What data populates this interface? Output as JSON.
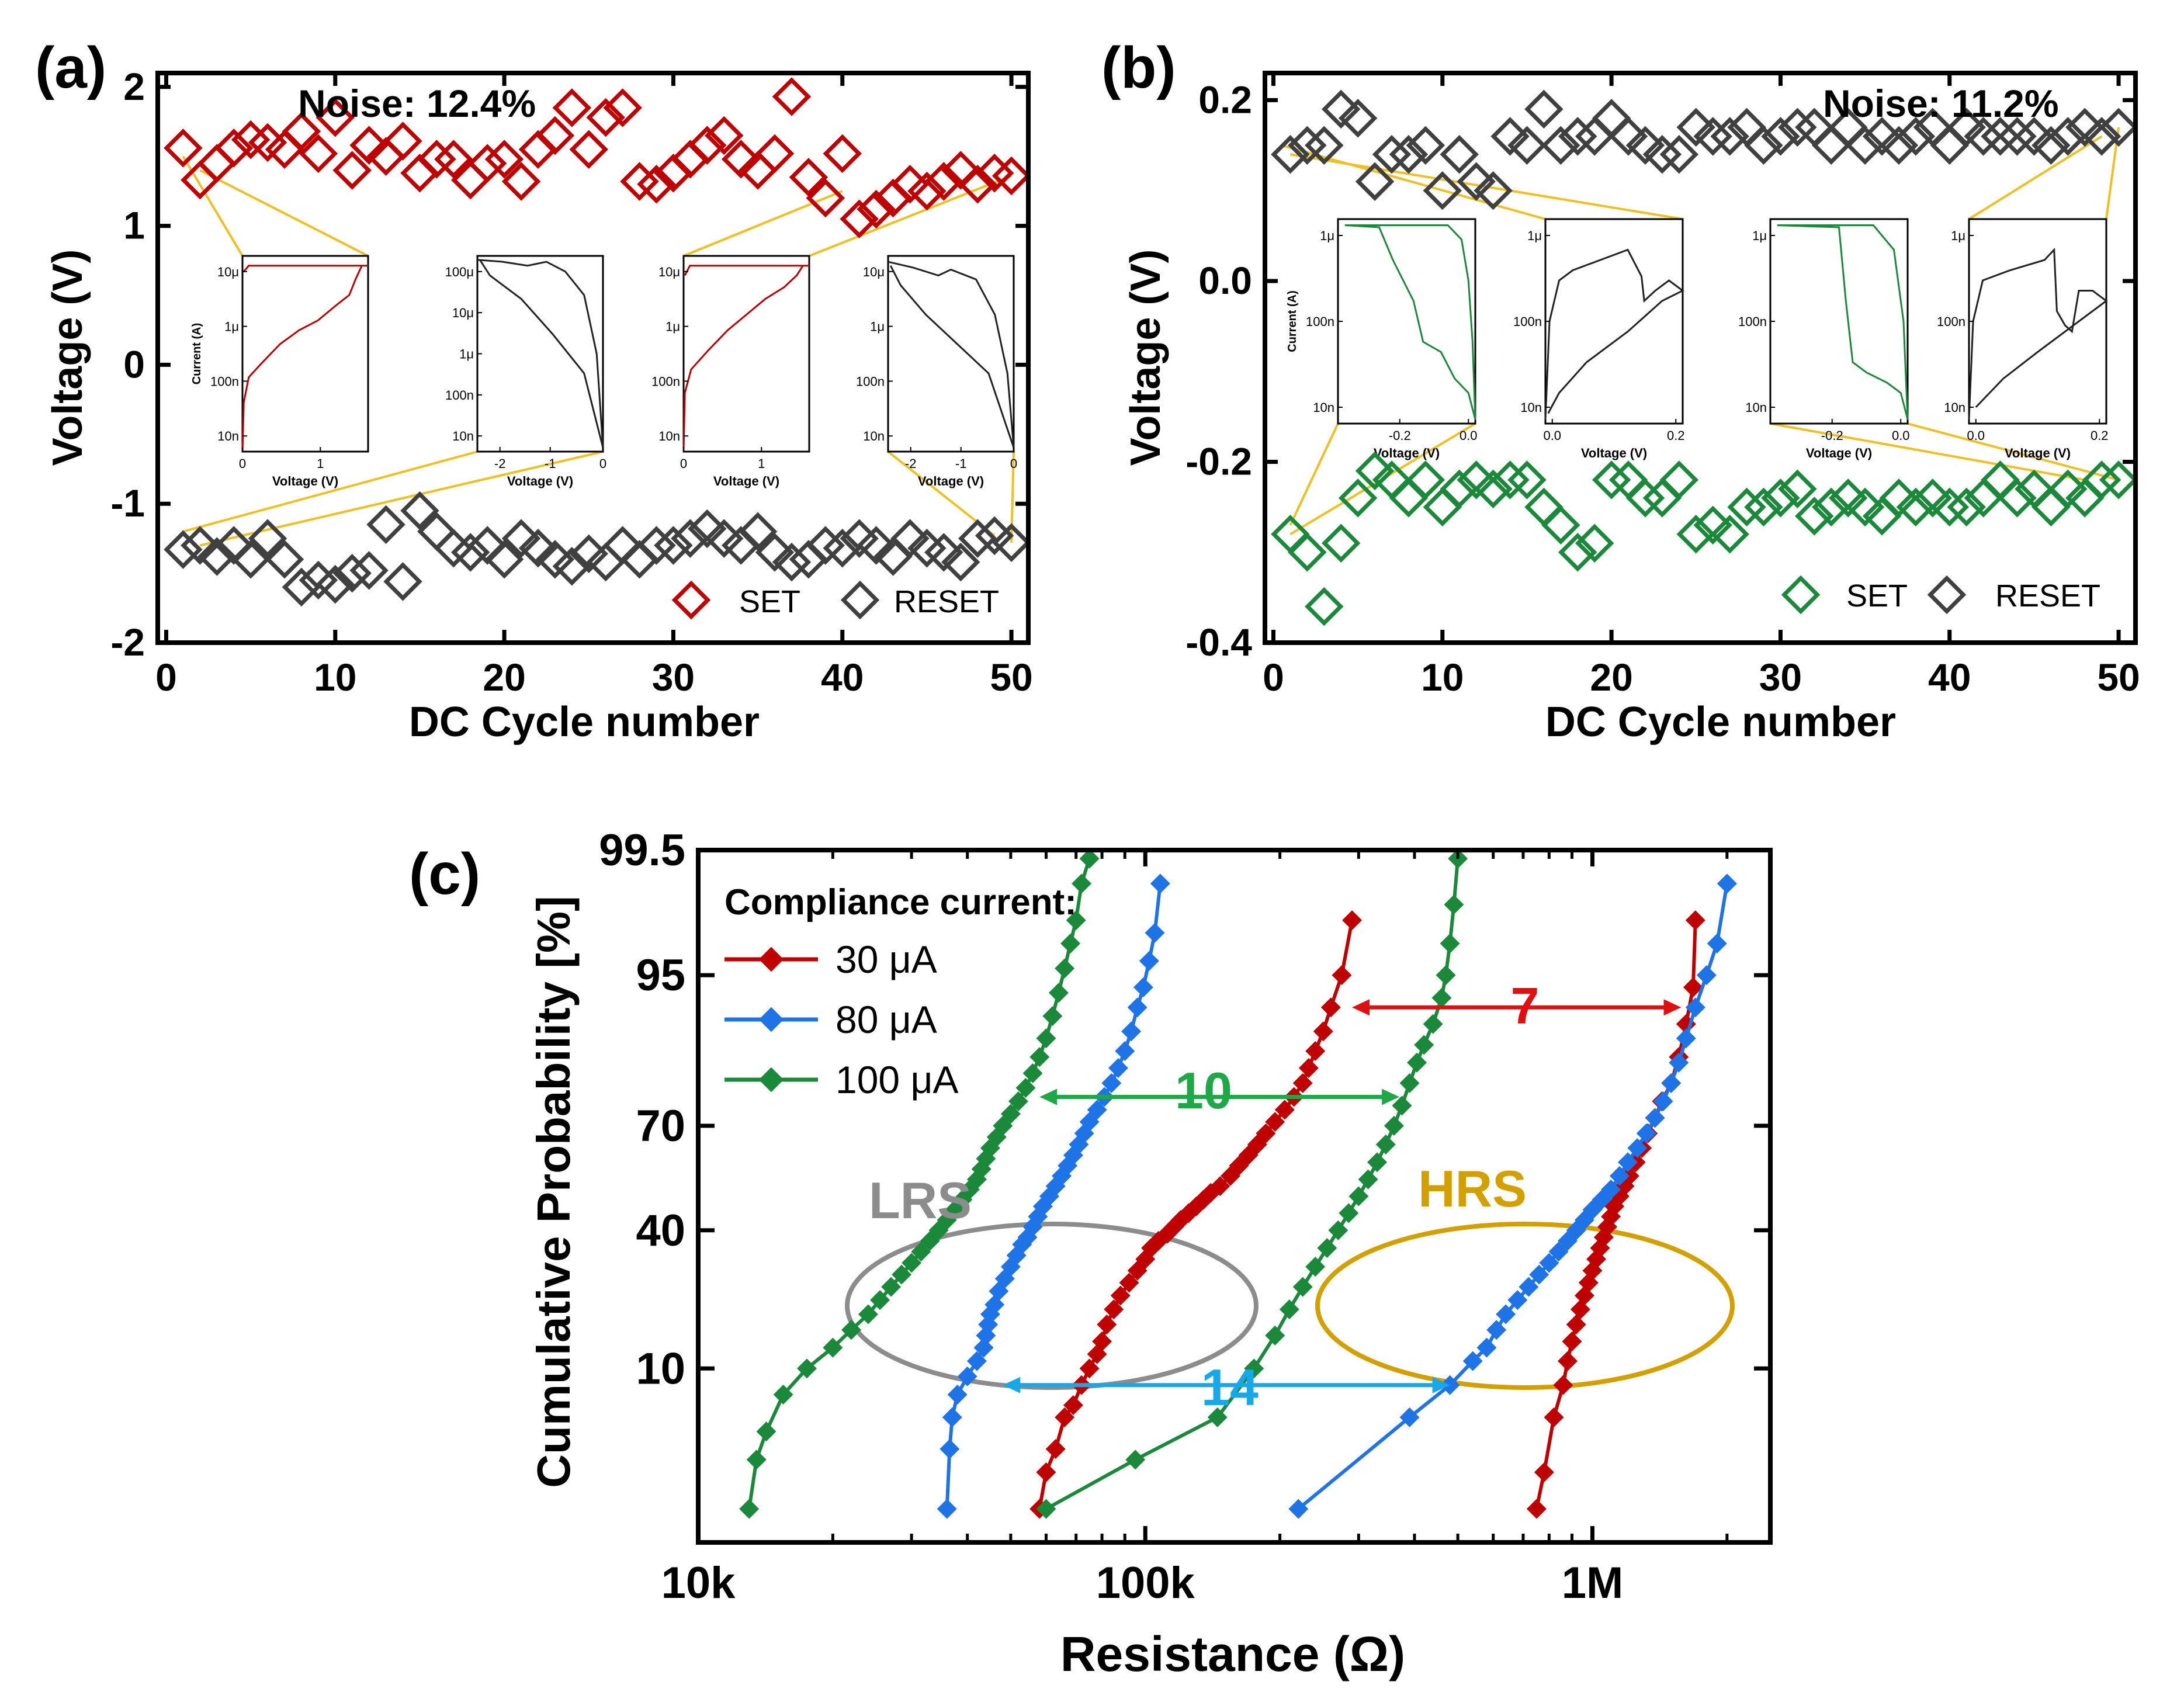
{
  "colors": {
    "set_a": "#C00000",
    "reset": "#404040",
    "set_b": "#1A8A3A",
    "ca30": "#C00000",
    "ca80": "#1E73E6",
    "ca100": "#1A8A3A",
    "lrs": "#8C8C8C",
    "hrs": "#D4A000",
    "leader": "#F0C020",
    "ann7": "#E01010",
    "ann10": "#20A848",
    "ann14": "#18A8E8"
  },
  "panel_a": {
    "label": "(a)",
    "noise": "Noise: 12.4%",
    "xlabel": "DC Cycle number",
    "ylabel": "Voltage (V)",
    "xticks": [
      "0",
      "10",
      "20",
      "30",
      "40",
      "50"
    ],
    "yticks": [
      "-2",
      "-1",
      "0",
      "1",
      "2"
    ],
    "legend": [
      "SET",
      "RESET"
    ],
    "inset_xlabel": "Voltage (V)",
    "inset_ylabel": "Current (A)",
    "inset1_yticks": [
      "10μ",
      "1μ",
      "100n",
      "10n"
    ],
    "inset1_xticks": [
      "0",
      "1"
    ],
    "inset2_yticks": [
      "100μ",
      "10μ",
      "1μ",
      "100n",
      "10n"
    ],
    "inset2_xticks": [
      "-2",
      "-1",
      "0"
    ],
    "inset3_yticks": [
      "10μ",
      "1μ",
      "100n",
      "10n"
    ],
    "inset3_xticks": [
      "0",
      "1"
    ],
    "inset4_yticks": [
      "10μ",
      "1μ",
      "100n",
      "10n"
    ],
    "inset4_xticks": [
      "-2",
      "-1",
      "0"
    ]
  },
  "panel_b": {
    "label": "(b)",
    "noise": "Noise: 11.2%",
    "xlabel": "DC Cycle number",
    "ylabel": "Voltage (V)",
    "xticks": [
      "0",
      "10",
      "20",
      "30",
      "40",
      "50"
    ],
    "yticks": [
      "-0.4",
      "-0.2",
      "0.0",
      "0.2"
    ],
    "legend": [
      "SET",
      "RESET"
    ],
    "inset_xlabel": "Voltage (V)",
    "inset_ylabel": "Current (A)",
    "inset1_yticks": [
      "1μ",
      "100n",
      "10n"
    ],
    "inset1_xticks": [
      "-0.2",
      "0.0"
    ],
    "inset2_yticks": [
      "1μ",
      "100n",
      "10n"
    ],
    "inset2_xticks": [
      "0.0",
      "0.2"
    ],
    "inset3_yticks": [
      "1μ",
      "100n",
      "10n"
    ],
    "inset3_xticks": [
      "-0.2",
      "0.0"
    ],
    "inset4_yticks": [
      "1μ",
      "100n",
      "10n"
    ],
    "inset4_xticks": [
      "0.0",
      "0.2"
    ]
  },
  "panel_c": {
    "label": "(c)",
    "xlabel": "Resistance (Ω)",
    "ylabel": "Cumulative Probability [%]",
    "xticks": [
      "10k",
      "100k",
      "1M"
    ],
    "yticks": [
      "99.5",
      "95",
      "70",
      "40",
      "10"
    ],
    "legend_title": "Compliance current:",
    "legend": [
      "30 μA",
      "80 μA",
      "100 μA"
    ],
    "lrs": "LRS",
    "hrs": "HRS",
    "ann7": "7",
    "ann10": "10",
    "ann14": "14"
  },
  "chart_data": [
    {
      "type": "scatter",
      "title": "(a)",
      "annotation": "Noise: 12.4%",
      "xlabel": "DC Cycle number",
      "ylabel": "Voltage (V)",
      "xlim": [
        -0.5,
        51
      ],
      "ylim": [
        -2,
        2.1
      ],
      "series": [
        {
          "name": "SET",
          "x": [
            1,
            2,
            3,
            4,
            5,
            6,
            7,
            8,
            9,
            10,
            11,
            12,
            13,
            14,
            15,
            16,
            17,
            18,
            19,
            20,
            21,
            22,
            23,
            24,
            25,
            26,
            27,
            28,
            29,
            30,
            31,
            32,
            33,
            34,
            35,
            36,
            37,
            38,
            39,
            40,
            41,
            42,
            43,
            44,
            45,
            46,
            47,
            48,
            49,
            50
          ],
          "values": [
            1.56,
            1.33,
            1.45,
            1.56,
            1.62,
            1.6,
            1.55,
            1.68,
            1.52,
            1.78,
            1.4,
            1.58,
            1.5,
            1.61,
            1.38,
            1.48,
            1.48,
            1.33,
            1.45,
            1.48,
            1.32,
            1.55,
            1.65,
            1.85,
            1.55,
            1.78,
            1.85,
            1.32,
            1.3,
            1.38,
            1.48,
            1.58,
            1.65,
            1.48,
            1.4,
            1.52,
            1.93,
            1.35,
            1.2,
            1.52,
            1.05,
            1.12,
            1.2,
            1.3,
            1.25,
            1.32,
            1.4,
            1.3,
            1.38,
            1.36
          ]
        },
        {
          "name": "RESET",
          "x": [
            1,
            2,
            3,
            4,
            5,
            6,
            7,
            8,
            9,
            10,
            11,
            12,
            13,
            14,
            15,
            16,
            17,
            18,
            19,
            20,
            21,
            22,
            23,
            24,
            25,
            26,
            27,
            28,
            29,
            30,
            31,
            32,
            33,
            34,
            35,
            36,
            37,
            38,
            39,
            40,
            41,
            42,
            43,
            44,
            45,
            46,
            47,
            48,
            49,
            50
          ],
          "values": [
            -1.33,
            -1.3,
            -1.38,
            -1.3,
            -1.4,
            -1.25,
            -1.4,
            -1.6,
            -1.55,
            -1.58,
            -1.5,
            -1.48,
            -1.15,
            -1.56,
            -1.05,
            -1.2,
            -1.32,
            -1.35,
            -1.3,
            -1.4,
            -1.25,
            -1.32,
            -1.4,
            -1.45,
            -1.36,
            -1.42,
            -1.3,
            -1.4,
            -1.3,
            -1.3,
            -1.25,
            -1.18,
            -1.25,
            -1.3,
            -1.2,
            -1.35,
            -1.42,
            -1.4,
            -1.3,
            -1.32,
            -1.25,
            -1.3,
            -1.38,
            -1.25,
            -1.32,
            -1.35,
            -1.42,
            -1.25,
            -1.23,
            -1.28
          ]
        }
      ]
    },
    {
      "type": "scatter",
      "title": "(b)",
      "annotation": "Noise: 11.2%",
      "xlabel": "DC Cycle number",
      "ylabel": "Voltage (V)",
      "xlim": [
        -0.5,
        51
      ],
      "ylim": [
        -0.4,
        0.23
      ],
      "series": [
        {
          "name": "SET",
          "x": [
            1,
            2,
            3,
            4,
            5,
            6,
            7,
            8,
            9,
            10,
            11,
            12,
            13,
            14,
            15,
            16,
            17,
            18,
            19,
            20,
            21,
            22,
            23,
            24,
            25,
            26,
            27,
            28,
            29,
            30,
            31,
            32,
            33,
            34,
            35,
            36,
            37,
            38,
            39,
            40,
            41,
            42,
            43,
            44,
            45,
            46,
            47,
            48,
            49,
            50
          ],
          "values": [
            -0.28,
            -0.3,
            -0.36,
            -0.29,
            -0.24,
            -0.21,
            -0.22,
            -0.24,
            -0.22,
            -0.25,
            -0.23,
            -0.22,
            -0.23,
            -0.22,
            -0.22,
            -0.25,
            -0.27,
            -0.3,
            -0.29,
            -0.22,
            -0.22,
            -0.24,
            -0.24,
            -0.22,
            -0.28,
            -0.27,
            -0.28,
            -0.25,
            -0.25,
            -0.24,
            -0.23,
            -0.26,
            -0.25,
            -0.24,
            -0.25,
            -0.26,
            -0.24,
            -0.25,
            -0.24,
            -0.25,
            -0.25,
            -0.24,
            -0.22,
            -0.24,
            -0.23,
            -0.25,
            -0.23,
            -0.24,
            -0.22,
            -0.22
          ]
        },
        {
          "name": "RESET",
          "x": [
            1,
            2,
            3,
            4,
            5,
            6,
            7,
            8,
            9,
            10,
            11,
            12,
            13,
            14,
            15,
            16,
            17,
            18,
            19,
            20,
            21,
            22,
            23,
            24,
            25,
            26,
            27,
            28,
            29,
            30,
            31,
            32,
            33,
            34,
            35,
            36,
            37,
            38,
            39,
            40,
            41,
            42,
            43,
            44,
            45,
            46,
            47,
            48,
            49,
            50
          ],
          "values": [
            0.14,
            0.15,
            0.15,
            0.19,
            0.18,
            0.11,
            0.14,
            0.14,
            0.15,
            0.1,
            0.14,
            0.11,
            0.1,
            0.16,
            0.15,
            0.19,
            0.15,
            0.16,
            0.16,
            0.18,
            0.16,
            0.15,
            0.14,
            0.14,
            0.17,
            0.16,
            0.16,
            0.17,
            0.15,
            0.16,
            0.17,
            0.17,
            0.15,
            0.17,
            0.15,
            0.16,
            0.15,
            0.16,
            0.17,
            0.15,
            0.17,
            0.16,
            0.16,
            0.16,
            0.16,
            0.15,
            0.16,
            0.17,
            0.16,
            0.17
          ]
        }
      ]
    },
    {
      "type": "line",
      "title": "(c)",
      "xlabel": "Resistance (Ω)",
      "ylabel": "Cumulative Probability [%]",
      "xscale": "log",
      "yscale": "probability",
      "xlim": [
        10000,
        2500000
      ],
      "ylim": [
        0.5,
        99.5
      ],
      "legend_title": "Compliance current:",
      "series": [
        {
          "name": "30 μA LRS",
          "x": [
            58000,
            60000,
            63000,
            66000,
            69000,
            72000,
            75000,
            78000,
            80000,
            82000,
            85000,
            88000,
            92000,
            96000,
            100000,
            103000,
            107000,
            112000,
            116000,
            120000,
            125000,
            130000,
            135000,
            140000,
            147000,
            155000,
            162000,
            170000,
            178000,
            186000,
            195000,
            205000,
            215000,
            225000,
            232000,
            240000,
            250000,
            260000,
            275000,
            290000
          ],
          "values": [
            1,
            2,
            3,
            5,
            6,
            8,
            10,
            12,
            14,
            17,
            20,
            23,
            26,
            29,
            32,
            35,
            37,
            39,
            41,
            43,
            45,
            47,
            49,
            51,
            53,
            56,
            59,
            62,
            65,
            68,
            71,
            74,
            77,
            80,
            83,
            86,
            89,
            92,
            95,
            98
          ]
        },
        {
          "name": "30 μA HRS",
          "x": [
            750000,
            780000,
            820000,
            860000,
            880000,
            900000,
            920000,
            940000,
            960000,
            980000,
            1000000,
            1020000,
            1040000,
            1060000,
            1080000,
            1100000,
            1120000,
            1150000,
            1180000,
            1210000,
            1250000,
            1290000,
            1330000,
            1380000,
            1430000,
            1500000,
            1560000,
            1620000,
            1680000,
            1700000
          ],
          "values": [
            1,
            2,
            5,
            8,
            11,
            14,
            17,
            20,
            23,
            26,
            29,
            32,
            35,
            38,
            41,
            44,
            47,
            50,
            53,
            56,
            60,
            64,
            68,
            72,
            76,
            80,
            85,
            90,
            94,
            98
          ]
        },
        {
          "name": "80 μA LRS",
          "x": [
            36000,
            36500,
            37000,
            38000,
            40000,
            42000,
            43500,
            44000,
            44500,
            45000,
            46000,
            47000,
            48500,
            50000,
            51500,
            53000,
            54500,
            56000,
            57500,
            59000,
            61000,
            63000,
            65000,
            67000,
            69000,
            71000,
            73000,
            75000,
            78000,
            81000,
            84000,
            87000,
            90000,
            93000,
            96000,
            99000,
            102000,
            105000,
            108000
          ],
          "values": [
            1,
            3,
            5,
            7,
            9,
            11,
            13,
            15,
            17,
            19,
            21,
            24,
            27,
            30,
            33,
            36,
            38,
            41,
            44,
            47,
            50,
            53,
            56,
            59,
            62,
            65,
            68,
            71,
            74,
            77,
            80,
            83,
            86,
            89,
            92,
            94,
            96,
            97.5,
            99
          ]
        },
        {
          "name": "80 μA HRS",
          "x": [
            220000,
            390000,
            480000,
            540000,
            580000,
            610000,
            640000,
            680000,
            720000,
            760000,
            800000,
            840000,
            880000,
            920000,
            960000,
            1000000,
            1050000,
            1100000,
            1150000,
            1200000,
            1260000,
            1320000,
            1380000,
            1440000,
            1500000,
            1560000,
            1620000,
            1700000,
            1800000,
            1900000,
            2000000
          ],
          "values": [
            1,
            5,
            8,
            11,
            13,
            16,
            19,
            22,
            25,
            28,
            31,
            34,
            37,
            40,
            43,
            46,
            49,
            52,
            56,
            60,
            64,
            68,
            72,
            76,
            80,
            84,
            88,
            92,
            95,
            97,
            99
          ]
        },
        {
          "name": "100 μA LRS",
          "x": [
            13000,
            13500,
            14200,
            15500,
            17500,
            20000,
            22000,
            24000,
            25500,
            27000,
            28500,
            30000,
            31500,
            33000,
            34500,
            36000,
            37500,
            39000,
            40500,
            42000,
            43000,
            44000,
            45000,
            46500,
            48000,
            50000,
            52000,
            54000,
            56000,
            58000,
            60000,
            62000,
            64000,
            66000,
            68000,
            70000,
            72000,
            75000
          ],
          "values": [
            1,
            2.5,
            4,
            7,
            10,
            13,
            16,
            19,
            22,
            25,
            28,
            31,
            34,
            37,
            40,
            43,
            46,
            49,
            52,
            55,
            58,
            61,
            64,
            67,
            70,
            73,
            76,
            79,
            82,
            85,
            88,
            91,
            93.5,
            95.5,
            97,
            98,
            99,
            99.4
          ]
        },
        {
          "name": "100 μA HRS",
          "x": [
            60000,
            95000,
            145000,
            175000,
            195000,
            210000,
            225000,
            240000,
            255000,
            270000,
            285000,
            300000,
            315000,
            330000,
            345000,
            360000,
            375000,
            390000,
            405000,
            420000,
            440000,
            460000,
            470000,
            480000,
            490000,
            500000
          ],
          "values": [
            1,
            2.5,
            5,
            10,
            15,
            20,
            25,
            30,
            35,
            40,
            45,
            50,
            55,
            60,
            65,
            70,
            75,
            80,
            84,
            87,
            90,
            93,
            95,
            97,
            98.5,
            99.4
          ]
        }
      ],
      "annotations": [
        {
          "text": "7",
          "from": 290000,
          "to": 1580000,
          "y": 92
        },
        {
          "text": "10",
          "from": 58000,
          "to": 370000,
          "y": 77
        },
        {
          "text": "14",
          "from": 48000,
          "to": 480000,
          "y": 8
        },
        {
          "text": "LRS",
          "x": 60000,
          "y": 40
        },
        {
          "text": "HRS",
          "x": 660000,
          "y": 40
        }
      ]
    }
  ]
}
